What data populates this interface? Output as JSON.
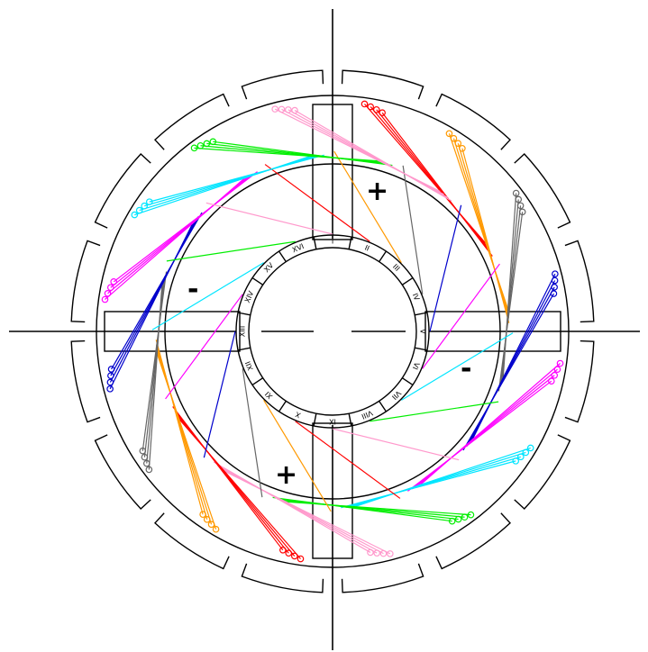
{
  "commutator": {
    "labels": [
      "I",
      "II",
      "III",
      "IV",
      "V",
      "VI",
      "VII",
      "VIII",
      "IX",
      "X",
      "XI",
      "XII",
      "XIII",
      "XIV",
      "XV",
      "XVI"
    ]
  },
  "polarity": {
    "plus_top": "+",
    "plus_bottom": "+",
    "minus_left": "-",
    "minus_right": "-"
  },
  "coil_colors": [
    "#ff0000",
    "#ff9900",
    "#666666",
    "#0000cc",
    "#ff00ff",
    "#00e5ff",
    "#00ee00",
    "#ff99cc"
  ]
}
